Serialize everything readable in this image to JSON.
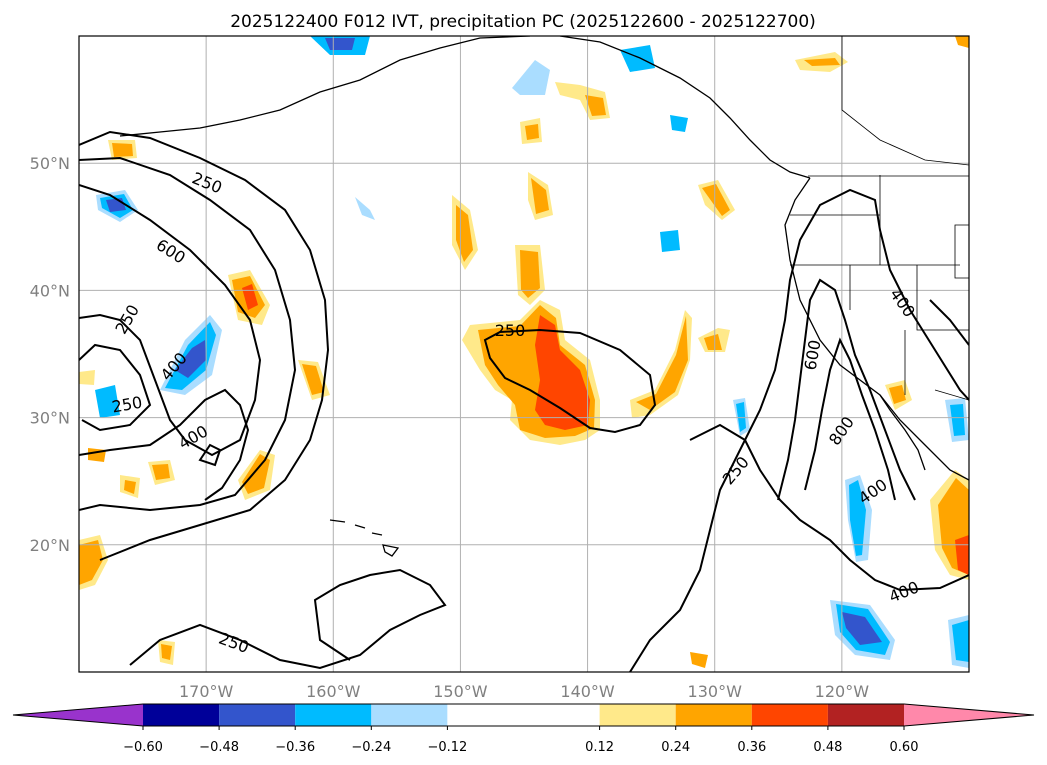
{
  "title": "2025122400 F012 IVT, precipitation PC (2025122600 - 2025122700)",
  "chart_data": {
    "type": "map-contour",
    "title": "2025122400 F012 IVT, precipitation PC (2025122600 - 2025122700)",
    "lon_range": [
      -180,
      -110
    ],
    "lat_range": [
      10,
      60
    ],
    "lat_ticks": [
      "20°N",
      "30°N",
      "40°N",
      "50°N"
    ],
    "lat_values": [
      20,
      30,
      40,
      50
    ],
    "lon_ticks": [
      "170°W",
      "160°W",
      "150°W",
      "140°W",
      "130°W",
      "120°W"
    ],
    "lon_values": [
      -170,
      -160,
      -150,
      -140,
      -130,
      -120
    ],
    "grid": true,
    "contour_labels": [
      "250",
      "600",
      "250",
      "400",
      "250",
      "400",
      "250",
      "250",
      "600",
      "400",
      "800",
      "400",
      "250",
      "400"
    ],
    "colorbar": {
      "ticks": [
        "−0.60",
        "−0.48",
        "−0.36",
        "−0.24",
        "−0.12",
        "0.12",
        "0.24",
        "0.36",
        "0.48",
        "0.60"
      ],
      "bounds": [
        -0.6,
        -0.48,
        -0.36,
        -0.24,
        -0.12,
        0.12,
        0.24,
        0.36,
        0.48,
        0.6
      ],
      "colors": [
        "#9933cc",
        "#000099",
        "#3355cc",
        "#00bbff",
        "#aaddff",
        "#ffffff",
        "#ffe98a",
        "#ffa500",
        "#ff4500",
        "#b22222",
        "#ff88aa"
      ],
      "extend": "both"
    }
  }
}
